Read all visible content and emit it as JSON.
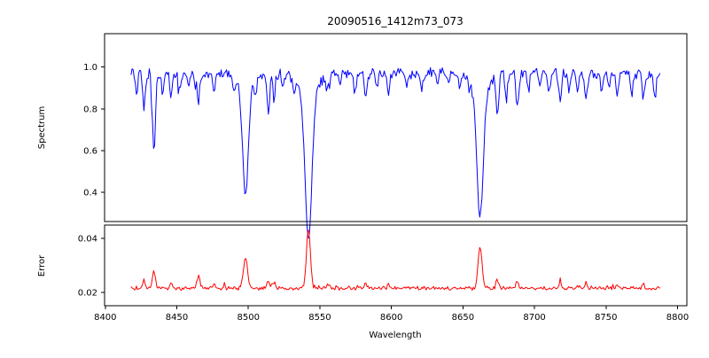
{
  "title": "20090516_1412m73_073",
  "axes": {
    "xlabel": "Wavelength",
    "ylabel_top": "Spectrum",
    "ylabel_bottom": "Error"
  },
  "colors": {
    "spectrum_line": "#0000ff",
    "error_line": "#ff0000",
    "spine": "#000000",
    "background": "#ffffff"
  },
  "chart_data": [
    {
      "name": "spectrum",
      "type": "line",
      "color": "#0000ff",
      "ylabel": "Spectrum",
      "xlim": [
        8399.5,
        8806.5
      ],
      "ylim": [
        0.26,
        1.16
      ],
      "x_ticks": [
        8400,
        8450,
        8500,
        8550,
        8600,
        8650,
        8700,
        8750,
        8800
      ],
      "x_tick_labels": [
        "8400",
        "8450",
        "8500",
        "8550",
        "8600",
        "8650",
        "8700",
        "8750",
        "8800"
      ],
      "y_ticks": [
        0.4,
        0.6,
        0.8,
        1.0
      ],
      "y_tick_labels": [
        "0.4",
        "0.6",
        "0.8",
        "1.0"
      ],
      "show_x_tick_labels": false,
      "x_data_range": [
        8418,
        8788
      ],
      "sample_step": 0.75,
      "continuum": 0.97,
      "noise_amplitude": 0.03,
      "spike_probability": 0.05,
      "spike_depth": 0.07,
      "lines_format": [
        "center_wavelength",
        "depth_below_continuum",
        "gaussian_sigma"
      ],
      "absorption_lines": [
        [
          8422,
          0.1,
          0.8
        ],
        [
          8427,
          0.17,
          0.9
        ],
        [
          8434,
          0.4,
          1.0
        ],
        [
          8440,
          0.1,
          0.8
        ],
        [
          8446,
          0.12,
          0.8
        ],
        [
          8452,
          0.08,
          0.8
        ],
        [
          8458,
          0.06,
          0.8
        ],
        [
          8465,
          0.15,
          0.9
        ],
        [
          8476,
          0.08,
          0.8
        ],
        [
          8490,
          0.07,
          0.8
        ],
        [
          8498,
          0.52,
          2.0
        ],
        [
          8498,
          0.06,
          6.0
        ],
        [
          8505,
          0.07,
          0.8
        ],
        [
          8514,
          0.2,
          0.9
        ],
        [
          8518,
          0.13,
          0.8
        ],
        [
          8524,
          0.06,
          0.8
        ],
        [
          8532,
          0.06,
          0.8
        ],
        [
          8542,
          0.7,
          2.3
        ],
        [
          8542,
          0.1,
          7.0
        ],
        [
          8556,
          0.06,
          0.8
        ],
        [
          8564,
          0.05,
          0.8
        ],
        [
          8575,
          0.08,
          0.8
        ],
        [
          8582,
          0.11,
          0.9
        ],
        [
          8590,
          0.05,
          0.8
        ],
        [
          8598,
          0.1,
          0.8
        ],
        [
          8611,
          0.06,
          0.8
        ],
        [
          8621,
          0.08,
          0.8
        ],
        [
          8632,
          0.05,
          0.8
        ],
        [
          8640,
          0.05,
          0.8
        ],
        [
          8648,
          0.07,
          0.8
        ],
        [
          8662,
          0.61,
          2.2
        ],
        [
          8662,
          0.08,
          6.0
        ],
        [
          8674,
          0.19,
          0.9
        ],
        [
          8680,
          0.12,
          0.8
        ],
        [
          8688,
          0.17,
          0.9
        ],
        [
          8696,
          0.07,
          0.8
        ],
        [
          8704,
          0.06,
          0.8
        ],
        [
          8710,
          0.09,
          0.8
        ],
        [
          8718,
          0.13,
          0.9
        ],
        [
          8724,
          0.06,
          0.8
        ],
        [
          8730,
          0.09,
          0.8
        ],
        [
          8736,
          0.14,
          0.9
        ],
        [
          8747,
          0.08,
          0.8
        ],
        [
          8752,
          0.06,
          0.8
        ],
        [
          8758,
          0.11,
          0.8
        ],
        [
          8768,
          0.09,
          0.8
        ],
        [
          8776,
          0.13,
          0.9
        ],
        [
          8784,
          0.1,
          0.8
        ]
      ]
    },
    {
      "name": "error",
      "type": "line",
      "color": "#ff0000",
      "ylabel": "Error",
      "xlim": [
        8399.5,
        8806.5
      ],
      "ylim": [
        0.015,
        0.045
      ],
      "x_ticks": [
        8400,
        8450,
        8500,
        8550,
        8600,
        8650,
        8700,
        8750,
        8800
      ],
      "x_tick_labels": [
        "8400",
        "8450",
        "8500",
        "8550",
        "8600",
        "8650",
        "8700",
        "8750",
        "8800"
      ],
      "y_ticks": [
        0.02,
        0.04
      ],
      "y_tick_labels": [
        "0.02",
        "0.04"
      ],
      "show_x_tick_labels": true,
      "x_data_range": [
        8418,
        8788
      ],
      "sample_step": 0.75,
      "baseline": 0.0215,
      "noise_amplitude": 0.0009,
      "spike_probability": 0.05,
      "spike_height": 0.0015,
      "peaks_format": [
        "center_wavelength",
        "height_above_baseline",
        "gaussian_sigma"
      ],
      "emission_peaks": [
        [
          8427,
          0.003,
          0.9
        ],
        [
          8434,
          0.0065,
          1.0
        ],
        [
          8446,
          0.002,
          0.8
        ],
        [
          8465,
          0.0045,
          1.0
        ],
        [
          8476,
          0.0018,
          0.8
        ],
        [
          8498,
          0.0115,
          1.4
        ],
        [
          8514,
          0.003,
          0.9
        ],
        [
          8518,
          0.002,
          0.8
        ],
        [
          8542,
          0.022,
          1.4
        ],
        [
          8556,
          0.0015,
          0.8
        ],
        [
          8582,
          0.002,
          0.8
        ],
        [
          8598,
          0.0015,
          0.8
        ],
        [
          8662,
          0.0155,
          1.4
        ],
        [
          8674,
          0.003,
          0.9
        ],
        [
          8688,
          0.0025,
          0.8
        ],
        [
          8718,
          0.002,
          0.8
        ],
        [
          8736,
          0.0025,
          0.8
        ],
        [
          8758,
          0.0018,
          0.8
        ],
        [
          8776,
          0.002,
          0.8
        ]
      ]
    }
  ]
}
